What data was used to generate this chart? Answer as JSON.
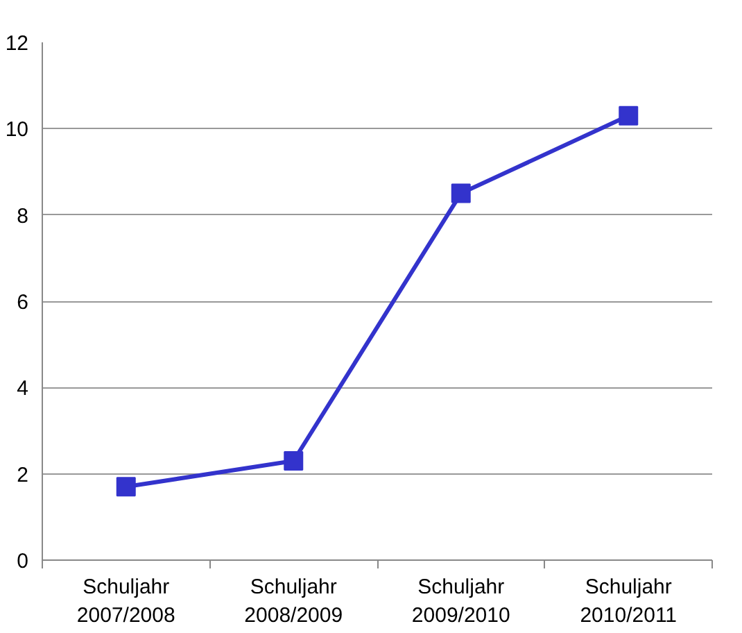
{
  "chart_data": {
    "type": "line",
    "categories": [
      "Schuljahr 2007/2008",
      "Schuljahr 2008/2009",
      "Schuljahr 2009/2010",
      "Schuljahr 2010/2011"
    ],
    "series": [
      {
        "color": "#3333cc",
        "values": [
          1.7,
          2.3,
          8.5,
          10.3
        ]
      }
    ],
    "ylim": [
      0,
      12
    ],
    "yticks": [
      0,
      2,
      4,
      6,
      8,
      10,
      12
    ],
    "grid": "y",
    "marker": "square",
    "line_style": "solid"
  }
}
